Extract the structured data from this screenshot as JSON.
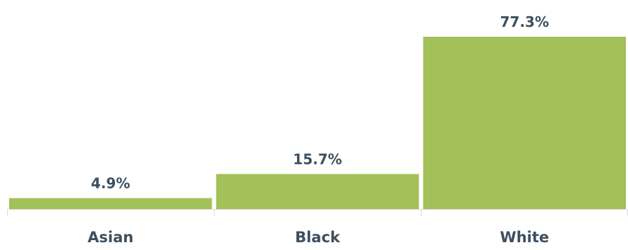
{
  "chart_data": {
    "type": "bar",
    "categories": [
      "Asian",
      "Black",
      "White"
    ],
    "values": [
      4.9,
      15.7,
      77.3
    ],
    "value_labels": [
      "4.9%",
      "15.7%",
      "77.3%"
    ],
    "title": "",
    "xlabel": "",
    "ylabel": "",
    "ylim": [
      0,
      77.3
    ],
    "grid": false,
    "legend": "none",
    "colors": {
      "bar": "#a2c158",
      "text": "#3d4f5f",
      "axis": "#d9d9d9"
    }
  }
}
